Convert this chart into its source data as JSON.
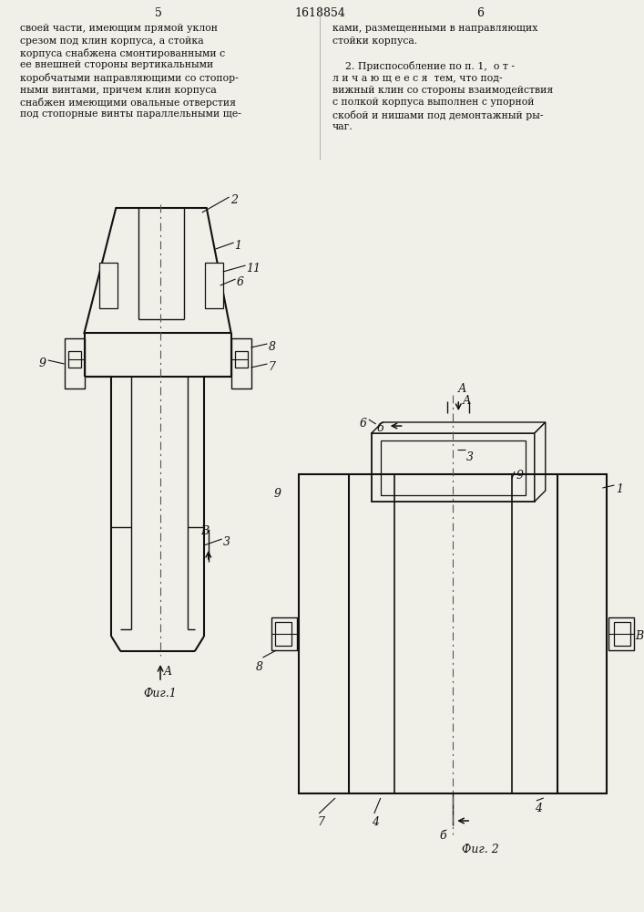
{
  "page_left": "5",
  "page_center": "1618854",
  "page_right": "6",
  "left_lines": [
    "своей части, имеющим прямой уклон",
    "срезом под клин корпуса, а стойка",
    "корпуса снабжена смонтированными с",
    "ее внешней стороны вертикальными",
    "коробчатыми направляющими со стопор-",
    "ными винтами, причем клин корпуса",
    "снабжен имеющими овальные отверстия",
    "под стопорные винты параллельными ще-"
  ],
  "right_lines": [
    "ками, размещенными в направляющих",
    "стойки корпуса.",
    "",
    "    2. Приспособление по п. 1,  о т -",
    "л и ч а ю щ е е с я  тем, что под-",
    "вижный клин со стороны взаимодействия",
    "с полкой корпуса выполнен с упорной",
    "скобой и нишами под демонтажный ры-",
    "чаг."
  ],
  "fig1_label": "Фиг.1",
  "fig2_label": "Фиг. 2",
  "bg_color": "#f0efe8",
  "line_color": "#111111"
}
